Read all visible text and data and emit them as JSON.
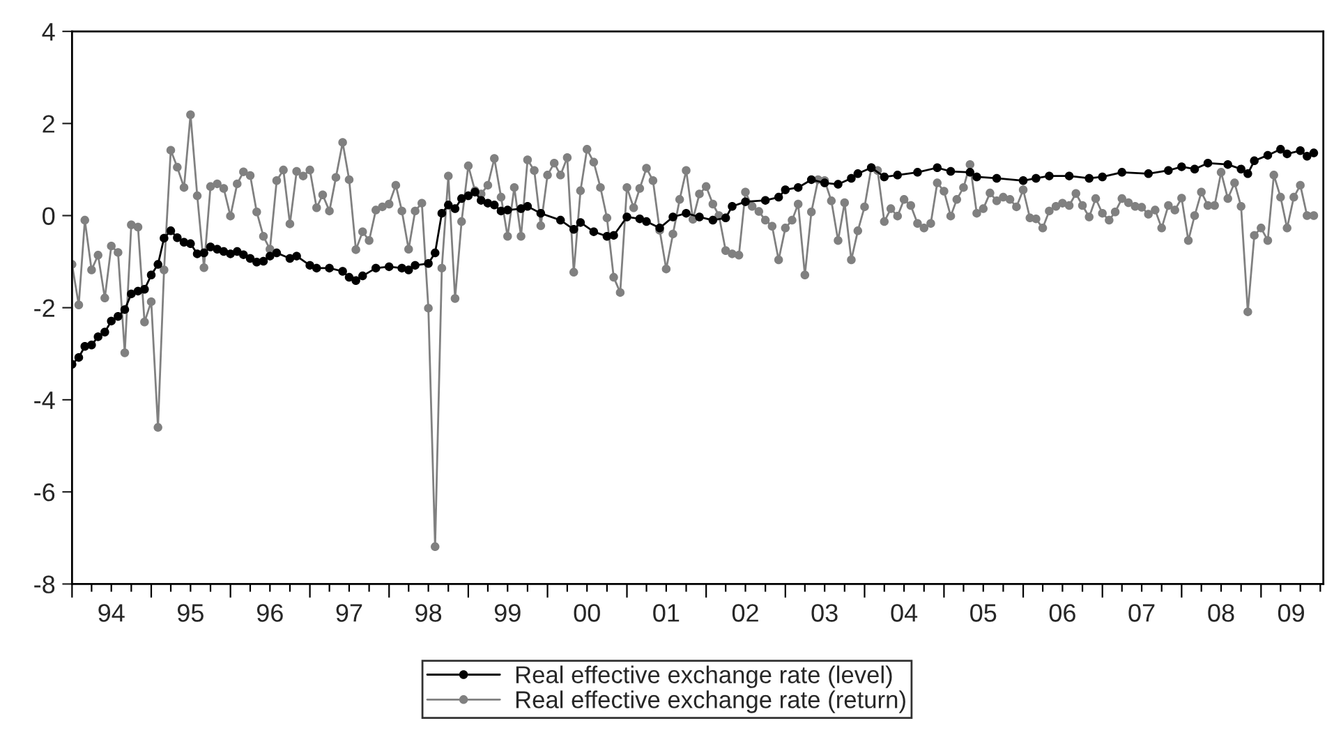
{
  "chart_data": {
    "type": "line",
    "x": [
      "1994-01",
      "1994-02",
      "1994-03",
      "1994-04",
      "1994-05",
      "1994-06",
      "1994-07",
      "1994-08",
      "1994-09",
      "1994-10",
      "1994-11",
      "1994-12",
      "1995-01",
      "1995-02",
      "1995-03",
      "1995-04",
      "1995-05",
      "1995-06",
      "1995-07",
      "1995-08",
      "1995-09",
      "1995-10",
      "1995-11",
      "1995-12",
      "1996-01",
      "1996-02",
      "1996-03",
      "1996-04",
      "1996-05",
      "1996-06",
      "1996-07",
      "1996-08",
      "1996-09",
      "1996-10",
      "1996-11",
      "1996-12",
      "1997-01",
      "1997-02",
      "1997-03",
      "1997-04",
      "1997-05",
      "1997-06",
      "1997-07",
      "1997-08",
      "1997-09",
      "1997-10",
      "1997-11",
      "1997-12",
      "1998-01",
      "1998-02",
      "1998-03",
      "1998-04",
      "1998-05",
      "1998-06",
      "1998-07",
      "1998-08",
      "1998-09",
      "1998-10",
      "1998-11",
      "1998-12",
      "1999-01",
      "1999-02",
      "1999-03",
      "1999-04",
      "1999-05",
      "1999-06",
      "1999-07",
      "1999-08",
      "1999-09",
      "1999-10",
      "1999-11",
      "1999-12",
      "2000-01",
      "2000-02",
      "2000-03",
      "2000-04",
      "2000-05",
      "2000-06",
      "2000-07",
      "2000-08",
      "2000-09",
      "2000-10",
      "2000-11",
      "2000-12",
      "2001-01",
      "2001-02",
      "2001-03",
      "2001-04",
      "2001-05",
      "2001-06",
      "2001-07",
      "2001-08",
      "2001-09",
      "2001-10",
      "2001-11",
      "2001-12",
      "2002-01",
      "2002-02",
      "2002-03",
      "2002-04",
      "2002-05",
      "2002-06",
      "2002-07",
      "2002-08",
      "2002-09",
      "2002-10",
      "2002-11",
      "2002-12",
      "2003-01",
      "2003-02",
      "2003-03",
      "2003-04",
      "2003-05",
      "2003-06",
      "2003-07",
      "2003-08",
      "2003-09",
      "2003-10",
      "2003-11",
      "2003-12",
      "2004-01",
      "2004-02",
      "2004-03",
      "2004-04",
      "2004-05",
      "2004-06",
      "2004-07",
      "2004-08",
      "2004-09",
      "2004-10",
      "2004-11",
      "2004-12",
      "2005-01",
      "2005-02",
      "2005-03",
      "2005-04",
      "2005-05",
      "2005-06",
      "2005-07",
      "2005-08",
      "2005-09",
      "2005-10",
      "2005-11",
      "2005-12",
      "2006-01",
      "2006-02",
      "2006-03",
      "2006-04",
      "2006-05",
      "2006-06",
      "2006-07",
      "2006-08",
      "2006-09",
      "2006-10",
      "2006-11",
      "2006-12",
      "2007-01",
      "2007-02",
      "2007-03",
      "2007-04",
      "2007-05",
      "2007-06",
      "2007-07",
      "2007-08",
      "2007-09",
      "2007-10",
      "2007-11",
      "2007-12",
      "2008-01",
      "2008-02",
      "2008-03",
      "2008-04",
      "2008-05",
      "2008-06",
      "2008-07",
      "2008-08",
      "2008-09",
      "2008-10",
      "2008-11",
      "2008-12",
      "2009-01",
      "2009-02",
      "2009-03",
      "2009-04",
      "2009-05",
      "2009-06",
      "2009-07",
      "2009-08",
      "2009-09"
    ],
    "series": [
      {
        "name": "Real effective exchange rate (level)",
        "color": "#000000",
        "x": [
          "1994-01",
          "1994-02",
          "1994-03",
          "1994-04",
          "1994-05",
          "1994-06",
          "1994-07",
          "1994-08",
          "1994-09",
          "1994-10",
          "1994-11",
          "1994-12",
          "1995-01",
          "1995-02",
          "1995-03",
          "1995-04",
          "1995-05",
          "1995-06",
          "1995-07",
          "1995-08",
          "1995-09",
          "1995-10",
          "1995-11",
          "1995-12",
          "1996-01",
          "1996-02",
          "1996-03",
          "1996-04",
          "1996-05",
          "1996-06",
          "1996-07",
          "1996-08",
          "1996-10",
          "1996-11",
          "1997-01",
          "1997-02",
          "1997-04",
          "1997-06",
          "1997-07",
          "1997-08",
          "1997-09",
          "1997-11",
          "1998-01",
          "1998-03",
          "1998-04",
          "1998-05",
          "1998-07",
          "1998-08",
          "1998-09",
          "1998-10",
          "1998-11",
          "1998-12",
          "1999-01",
          "1999-02",
          "1999-03",
          "1999-04",
          "1999-05",
          "1999-06",
          "1999-07",
          "1999-09",
          "1999-10",
          "1999-12",
          "2000-03",
          "2000-05",
          "2000-06",
          "2000-08",
          "2000-10",
          "2000-11",
          "2001-01",
          "2001-03",
          "2001-04",
          "2001-06",
          "2001-08",
          "2001-10",
          "2001-12",
          "2002-02",
          "2002-04",
          "2002-05",
          "2002-07",
          "2002-10",
          "2002-12",
          "2003-01",
          "2003-03",
          "2003-05",
          "2003-07",
          "2003-09",
          "2003-11",
          "2003-12",
          "2004-02",
          "2004-04",
          "2004-06",
          "2004-09",
          "2004-12",
          "2005-02",
          "2005-05",
          "2005-06",
          "2005-09",
          "2006-01",
          "2006-03",
          "2006-05",
          "2006-08",
          "2006-11",
          "2007-01",
          "2007-04",
          "2007-08",
          "2007-11",
          "2008-01",
          "2008-03",
          "2008-05",
          "2008-08",
          "2008-10",
          "2008-11",
          "2008-12",
          "2009-02",
          "2009-04",
          "2009-05",
          "2009-07",
          "2009-08",
          "2009-09"
        ],
        "values": [
          -3.23,
          -3.08,
          -2.84,
          -2.81,
          -2.63,
          -2.53,
          -2.29,
          -2.19,
          -2.04,
          -1.7,
          -1.64,
          -1.6,
          -1.29,
          -1.06,
          -0.49,
          -0.33,
          -0.48,
          -0.58,
          -0.61,
          -0.83,
          -0.81,
          -0.68,
          -0.73,
          -0.78,
          -0.83,
          -0.78,
          -0.85,
          -0.93,
          -1.01,
          -0.99,
          -0.88,
          -0.81,
          -0.93,
          -0.88,
          -1.08,
          -1.14,
          -1.14,
          -1.21,
          -1.34,
          -1.41,
          -1.31,
          -1.14,
          -1.11,
          -1.14,
          -1.18,
          -1.08,
          -1.04,
          -0.81,
          0.05,
          0.23,
          0.15,
          0.37,
          0.43,
          0.51,
          0.33,
          0.27,
          0.23,
          0.1,
          0.12,
          0.15,
          0.2,
          0.05,
          -0.1,
          -0.3,
          -0.15,
          -0.35,
          -0.45,
          -0.43,
          -0.03,
          -0.07,
          -0.13,
          -0.27,
          -0.03,
          0.05,
          -0.03,
          -0.1,
          -0.05,
          0.2,
          0.3,
          0.33,
          0.4,
          0.56,
          0.61,
          0.78,
          0.71,
          0.68,
          0.81,
          0.91,
          1.04,
          0.84,
          0.88,
          0.94,
          1.04,
          0.96,
          0.94,
          0.84,
          0.81,
          0.76,
          0.81,
          0.86,
          0.86,
          0.81,
          0.84,
          0.94,
          0.91,
          0.98,
          1.06,
          1.01,
          1.14,
          1.11,
          1.01,
          0.91,
          1.19,
          1.31,
          1.44,
          1.34,
          1.41,
          1.29,
          1.36
        ]
      },
      {
        "name": "Real effective exchange rate (return)",
        "color": "#808080",
        "values": [
          -1.06,
          -1.94,
          -0.1,
          -1.18,
          -0.86,
          -1.79,
          -0.66,
          -0.8,
          -2.98,
          -0.2,
          -0.25,
          -2.31,
          -1.87,
          -4.6,
          -1.18,
          1.42,
          1.05,
          0.61,
          2.19,
          0.43,
          -1.13,
          0.63,
          0.69,
          0.59,
          -0.01,
          0.69,
          0.95,
          0.87,
          0.08,
          -0.45,
          -0.73,
          0.76,
          0.99,
          -0.18,
          0.96,
          0.86,
          0.99,
          0.17,
          0.45,
          0.1,
          0.83,
          1.59,
          0.78,
          -0.74,
          -0.35,
          -0.54,
          0.12,
          0.19,
          0.25,
          0.66,
          0.1,
          -0.73,
          0.1,
          0.27,
          -2.01,
          -7.19,
          -1.14,
          0.86,
          -1.8,
          -0.13,
          1.08,
          0.54,
          0.47,
          0.66,
          1.24,
          0.4,
          -0.45,
          0.61,
          -0.45,
          1.21,
          0.98,
          -0.22,
          0.88,
          1.14,
          0.88,
          1.26,
          -1.23,
          0.54,
          1.44,
          1.16,
          0.61,
          -0.05,
          -1.34,
          -1.67,
          0.61,
          0.17,
          0.59,
          1.03,
          0.76,
          -0.32,
          -1.16,
          -0.4,
          0.35,
          0.98,
          -0.08,
          0.47,
          0.63,
          0.25,
          0.0,
          -0.76,
          -0.83,
          -0.86,
          0.51,
          0.2,
          0.09,
          -0.1,
          -0.23,
          -0.96,
          -0.27,
          -0.1,
          0.25,
          -1.29,
          0.08,
          0.78,
          0.76,
          0.32,
          -0.54,
          0.28,
          -0.96,
          -0.33,
          0.19,
          1.04,
          0.98,
          -0.13,
          0.15,
          -0.01,
          0.35,
          0.22,
          -0.17,
          -0.27,
          -0.17,
          0.71,
          0.53,
          -0.01,
          0.35,
          0.61,
          1.11,
          0.05,
          0.15,
          0.49,
          0.32,
          0.4,
          0.35,
          0.19,
          0.56,
          -0.05,
          -0.07,
          -0.27,
          0.1,
          0.2,
          0.27,
          0.22,
          0.48,
          0.22,
          -0.03,
          0.37,
          0.05,
          -0.1,
          0.08,
          0.37,
          0.28,
          0.2,
          0.18,
          0.03,
          0.12,
          -0.27,
          0.22,
          0.12,
          0.38,
          -0.54,
          0.0,
          0.51,
          0.22,
          0.22,
          0.94,
          0.37,
          0.71,
          0.2,
          -2.09,
          -0.43,
          -0.27,
          -0.54,
          0.88,
          0.4,
          -0.27,
          0.4,
          0.66,
          0.0,
          0.0
        ]
      }
    ],
    "xlim": [
      "1994-01-01",
      "2009-10-15"
    ],
    "xticks": [
      {
        "value": "1994-07-01",
        "label": "94"
      },
      {
        "value": "1995-07-01",
        "label": "95"
      },
      {
        "value": "1996-07-01",
        "label": "96"
      },
      {
        "value": "1997-07-01",
        "label": "97"
      },
      {
        "value": "1998-07-01",
        "label": "98"
      },
      {
        "value": "1999-07-01",
        "label": "99"
      },
      {
        "value": "2000-07-01",
        "label": "00"
      },
      {
        "value": "2001-07-01",
        "label": "01"
      },
      {
        "value": "2002-07-01",
        "label": "02"
      },
      {
        "value": "2003-07-01",
        "label": "03"
      },
      {
        "value": "2004-07-01",
        "label": "04"
      },
      {
        "value": "2005-07-01",
        "label": "05"
      },
      {
        "value": "2006-07-01",
        "label": "06"
      },
      {
        "value": "2007-07-01",
        "label": "07"
      },
      {
        "value": "2008-07-01",
        "label": "08"
      },
      {
        "value": "2009-05-20",
        "label": "09"
      },
      {
        "value": "1994-01-01",
        "label": null
      },
      {
        "value": "1994-04-01",
        "label": null
      },
      {
        "value": "1994-07-01",
        "label": null
      },
      {
        "value": "1994-10-01",
        "label": null
      },
      {
        "value": "1995-01-01",
        "label": null
      },
      {
        "value": "1995-04-01",
        "label": null
      },
      {
        "value": "1995-07-01",
        "label": null
      },
      {
        "value": "1995-10-01",
        "label": null
      },
      {
        "value": "1996-01-01",
        "label": null
      },
      {
        "value": "1996-04-01",
        "label": null
      },
      {
        "value": "1996-07-01",
        "label": null
      },
      {
        "value": "1996-10-01",
        "label": null
      },
      {
        "value": "1997-01-01",
        "label": null
      },
      {
        "value": "1997-04-01",
        "label": null
      },
      {
        "value": "1997-07-01",
        "label": null
      },
      {
        "value": "1997-10-01",
        "label": null
      },
      {
        "value": "1998-01-01",
        "label": null
      },
      {
        "value": "1998-04-01",
        "label": null
      },
      {
        "value": "1998-07-01",
        "label": null
      },
      {
        "value": "1998-10-01",
        "label": null
      },
      {
        "value": "1999-01-01",
        "label": null
      },
      {
        "value": "1999-04-01",
        "label": null
      },
      {
        "value": "1999-07-01",
        "label": null
      },
      {
        "value": "1999-10-01",
        "label": null
      },
      {
        "value": "2000-01-01",
        "label": null
      },
      {
        "value": "2000-04-01",
        "label": null
      },
      {
        "value": "2000-07-01",
        "label": null
      },
      {
        "value": "2000-10-01",
        "label": null
      },
      {
        "value": "2001-01-01",
        "label": null
      },
      {
        "value": "2001-04-01",
        "label": null
      },
      {
        "value": "2001-07-01",
        "label": null
      },
      {
        "value": "2001-10-01",
        "label": null
      },
      {
        "value": "2002-01-01",
        "label": null
      },
      {
        "value": "2002-04-01",
        "label": null
      },
      {
        "value": "2002-07-01",
        "label": null
      },
      {
        "value": "2002-10-01",
        "label": null
      },
      {
        "value": "2003-01-01",
        "label": null
      },
      {
        "value": "2003-04-01",
        "label": null
      },
      {
        "value": "2003-07-01",
        "label": null
      },
      {
        "value": "2003-10-01",
        "label": null
      },
      {
        "value": "2004-01-01",
        "label": null
      },
      {
        "value": "2004-04-01",
        "label": null
      },
      {
        "value": "2004-07-01",
        "label": null
      },
      {
        "value": "2004-10-01",
        "label": null
      },
      {
        "value": "2005-01-01",
        "label": null
      },
      {
        "value": "2005-04-01",
        "label": null
      },
      {
        "value": "2005-07-01",
        "label": null
      },
      {
        "value": "2005-10-01",
        "label": null
      },
      {
        "value": "2006-01-01",
        "label": null
      },
      {
        "value": "2006-04-01",
        "label": null
      },
      {
        "value": "2006-07-01",
        "label": null
      },
      {
        "value": "2006-10-01",
        "label": null
      },
      {
        "value": "2007-01-01",
        "label": null
      },
      {
        "value": "2007-04-01",
        "label": null
      },
      {
        "value": "2007-07-01",
        "label": null
      },
      {
        "value": "2007-10-01",
        "label": null
      },
      {
        "value": "2008-01-01",
        "label": null
      },
      {
        "value": "2008-04-01",
        "label": null
      },
      {
        "value": "2008-07-01",
        "label": null
      },
      {
        "value": "2008-10-01",
        "label": null
      },
      {
        "value": "2009-01-01",
        "label": null
      },
      {
        "value": "2009-04-01",
        "label": null
      },
      {
        "value": "2009-07-01",
        "label": null
      },
      {
        "value": "2009-10-01",
        "label": null
      }
    ],
    "ylim": [
      -8,
      4
    ],
    "yticks": [
      -8,
      -6,
      -4,
      -2,
      0,
      2,
      4
    ],
    "grid": false,
    "legend": "bottom",
    "marker": "circle",
    "line_style": "solid"
  }
}
